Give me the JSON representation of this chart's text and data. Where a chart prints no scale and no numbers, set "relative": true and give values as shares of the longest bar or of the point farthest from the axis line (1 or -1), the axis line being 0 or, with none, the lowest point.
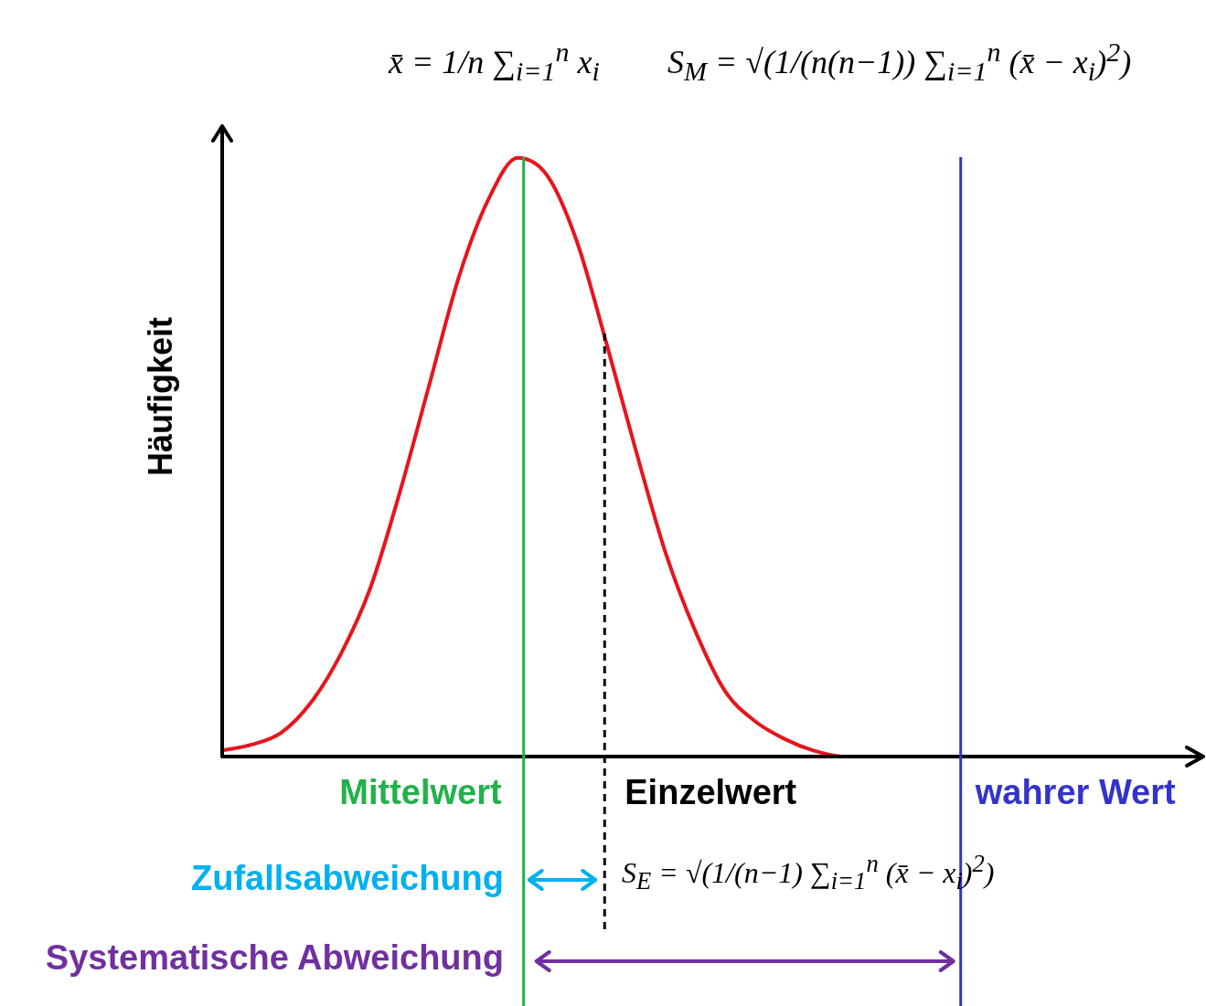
{
  "chart_data": {
    "type": "line",
    "relative": true,
    "ylabel": "Häufigkeit",
    "legend": false,
    "marker": "none",
    "line_style": "solid",
    "categories": [
      null,
      null,
      null,
      null,
      null,
      null,
      null,
      null,
      null,
      null,
      null,
      null,
      null,
      null,
      null,
      null,
      null,
      null,
      null,
      null,
      null,
      null,
      null,
      null,
      null,
      null,
      null,
      null,
      null,
      null,
      null,
      null,
      null,
      null
    ],
    "series": [
      {
        "color": "#e8141b",
        "values": [
          0.01,
          0.02,
          0.04,
          0.09,
          0.17,
          0.28,
          0.44,
          0.62,
          0.8,
          0.93,
          1,
          0.97,
          0.86,
          0.69,
          0.51,
          0.34,
          0.21,
          0.11,
          0.06,
          0.03,
          0.01,
          0,
          0,
          null,
          null,
          null,
          null,
          null,
          null,
          null,
          null,
          null,
          null,
          null
        ]
      }
    ],
    "ref_lines": [
      {
        "axis": "x",
        "label": "Mittelwert",
        "color": "#22b14c",
        "line_style": "solid"
      },
      {
        "axis": "x",
        "label": "Einzelwert",
        "color": "#000000",
        "line_style": "dashed"
      },
      {
        "axis": "x",
        "label": "wahrer Wert",
        "color": "#3333cc",
        "line_style": "solid"
      }
    ],
    "annotations": [
      "x̄ = 1/n ∑$_{i=1}$$^{n}$ x$_{i}$",
      "S$_{M}$ = √(1/(n(n−1)) ∑$_{i=1}$$^{n}$ (x̄ − x$_{i}$)$^{2}$)",
      "Zufallsabweichung",
      "Systematische Abweichung",
      "S$_{E}$ = √(1/(n−1) ∑$_{i=1}$$^{n}$ (x̄ − x$_{i}$)$^{2}$)"
    ]
  }
}
